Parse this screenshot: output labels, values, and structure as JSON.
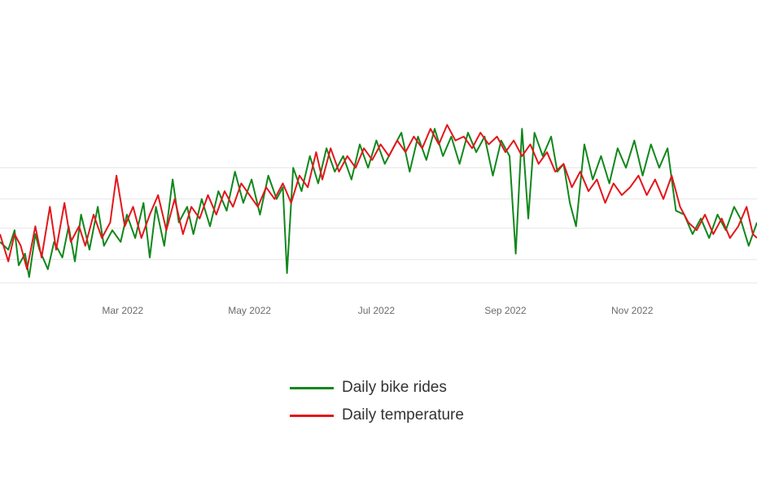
{
  "chart_data": {
    "type": "line",
    "x_axis": {
      "type": "date",
      "range": [
        "2022-01-01",
        "2022-12-31"
      ],
      "tick_labels": [
        "Mar 2022",
        "May 2022",
        "Jul 2022",
        "Sep 2022",
        "Nov 2022"
      ],
      "tick_dates": [
        "2022-03-01",
        "2022-05-01",
        "2022-07-01",
        "2022-09-01",
        "2022-11-01"
      ]
    },
    "y_axis": {
      "range": [
        0,
        100
      ],
      "gridline_values": [
        5,
        17,
        33,
        48,
        64
      ],
      "tick_labels_visible": false
    },
    "grid": true,
    "legend": {
      "position": "bottom-center"
    },
    "series": [
      {
        "name": "Daily bike rides",
        "color": "#11871c",
        "values": [
          [
            "2022-01-01",
            26
          ],
          [
            "2022-01-05",
            22
          ],
          [
            "2022-01-08",
            32
          ],
          [
            "2022-01-10",
            14
          ],
          [
            "2022-01-13",
            20
          ],
          [
            "2022-01-15",
            8
          ],
          [
            "2022-01-18",
            30
          ],
          [
            "2022-01-20",
            22
          ],
          [
            "2022-01-24",
            12
          ],
          [
            "2022-01-27",
            26
          ],
          [
            "2022-01-31",
            18
          ],
          [
            "2022-02-03",
            34
          ],
          [
            "2022-02-06",
            16
          ],
          [
            "2022-02-09",
            40
          ],
          [
            "2022-02-13",
            22
          ],
          [
            "2022-02-17",
            44
          ],
          [
            "2022-02-20",
            24
          ],
          [
            "2022-02-24",
            32
          ],
          [
            "2022-02-28",
            26
          ],
          [
            "2022-03-03",
            40
          ],
          [
            "2022-03-07",
            28
          ],
          [
            "2022-03-11",
            46
          ],
          [
            "2022-03-14",
            18
          ],
          [
            "2022-03-17",
            44
          ],
          [
            "2022-03-21",
            24
          ],
          [
            "2022-03-25",
            58
          ],
          [
            "2022-03-28",
            36
          ],
          [
            "2022-04-01",
            44
          ],
          [
            "2022-04-04",
            30
          ],
          [
            "2022-04-08",
            48
          ],
          [
            "2022-04-12",
            34
          ],
          [
            "2022-04-16",
            52
          ],
          [
            "2022-04-20",
            42
          ],
          [
            "2022-04-24",
            62
          ],
          [
            "2022-04-28",
            46
          ],
          [
            "2022-05-02",
            58
          ],
          [
            "2022-05-06",
            40
          ],
          [
            "2022-05-10",
            60
          ],
          [
            "2022-05-14",
            48
          ],
          [
            "2022-05-17",
            54
          ],
          [
            "2022-05-19",
            10
          ],
          [
            "2022-05-22",
            64
          ],
          [
            "2022-05-26",
            52
          ],
          [
            "2022-05-30",
            70
          ],
          [
            "2022-06-03",
            56
          ],
          [
            "2022-06-07",
            74
          ],
          [
            "2022-06-11",
            62
          ],
          [
            "2022-06-15",
            70
          ],
          [
            "2022-06-19",
            58
          ],
          [
            "2022-06-23",
            76
          ],
          [
            "2022-06-27",
            64
          ],
          [
            "2022-07-01",
            78
          ],
          [
            "2022-07-05",
            66
          ],
          [
            "2022-07-09",
            74
          ],
          [
            "2022-07-13",
            82
          ],
          [
            "2022-07-17",
            62
          ],
          [
            "2022-07-21",
            80
          ],
          [
            "2022-07-25",
            68
          ],
          [
            "2022-07-29",
            84
          ],
          [
            "2022-08-02",
            70
          ],
          [
            "2022-08-06",
            80
          ],
          [
            "2022-08-10",
            66
          ],
          [
            "2022-08-14",
            82
          ],
          [
            "2022-08-18",
            72
          ],
          [
            "2022-08-22",
            80
          ],
          [
            "2022-08-26",
            60
          ],
          [
            "2022-08-30",
            78
          ],
          [
            "2022-09-03",
            70
          ],
          [
            "2022-09-06",
            20
          ],
          [
            "2022-09-09",
            84
          ],
          [
            "2022-09-12",
            38
          ],
          [
            "2022-09-15",
            82
          ],
          [
            "2022-09-19",
            70
          ],
          [
            "2022-09-23",
            80
          ],
          [
            "2022-09-26",
            62
          ],
          [
            "2022-09-29",
            66
          ],
          [
            "2022-10-02",
            46
          ],
          [
            "2022-10-05",
            34
          ],
          [
            "2022-10-09",
            76
          ],
          [
            "2022-10-13",
            58
          ],
          [
            "2022-10-17",
            70
          ],
          [
            "2022-10-21",
            56
          ],
          [
            "2022-10-25",
            74
          ],
          [
            "2022-10-29",
            64
          ],
          [
            "2022-11-02",
            78
          ],
          [
            "2022-11-06",
            60
          ],
          [
            "2022-11-10",
            76
          ],
          [
            "2022-11-14",
            64
          ],
          [
            "2022-11-18",
            74
          ],
          [
            "2022-11-22",
            42
          ],
          [
            "2022-11-26",
            40
          ],
          [
            "2022-11-30",
            30
          ],
          [
            "2022-12-04",
            38
          ],
          [
            "2022-12-08",
            28
          ],
          [
            "2022-12-12",
            40
          ],
          [
            "2022-12-16",
            32
          ],
          [
            "2022-12-20",
            44
          ],
          [
            "2022-12-23",
            38
          ],
          [
            "2022-12-27",
            24
          ],
          [
            "2022-12-31",
            36
          ]
        ]
      },
      {
        "name": "Daily temperature",
        "color": "#e3161b",
        "values": [
          [
            "2022-01-01",
            30
          ],
          [
            "2022-01-05",
            16
          ],
          [
            "2022-01-08",
            30
          ],
          [
            "2022-01-11",
            24
          ],
          [
            "2022-01-14",
            12
          ],
          [
            "2022-01-18",
            34
          ],
          [
            "2022-01-21",
            18
          ],
          [
            "2022-01-25",
            44
          ],
          [
            "2022-01-28",
            22
          ],
          [
            "2022-02-01",
            46
          ],
          [
            "2022-02-04",
            26
          ],
          [
            "2022-02-08",
            34
          ],
          [
            "2022-02-11",
            24
          ],
          [
            "2022-02-15",
            40
          ],
          [
            "2022-02-19",
            28
          ],
          [
            "2022-02-23",
            36
          ],
          [
            "2022-02-26",
            60
          ],
          [
            "2022-03-02",
            34
          ],
          [
            "2022-03-06",
            44
          ],
          [
            "2022-03-10",
            28
          ],
          [
            "2022-03-14",
            40
          ],
          [
            "2022-03-18",
            50
          ],
          [
            "2022-03-22",
            32
          ],
          [
            "2022-03-26",
            48
          ],
          [
            "2022-03-30",
            30
          ],
          [
            "2022-04-03",
            44
          ],
          [
            "2022-04-07",
            38
          ],
          [
            "2022-04-11",
            50
          ],
          [
            "2022-04-15",
            40
          ],
          [
            "2022-04-19",
            52
          ],
          [
            "2022-04-23",
            44
          ],
          [
            "2022-04-27",
            56
          ],
          [
            "2022-05-01",
            50
          ],
          [
            "2022-05-05",
            44
          ],
          [
            "2022-05-09",
            54
          ],
          [
            "2022-05-13",
            48
          ],
          [
            "2022-05-17",
            56
          ],
          [
            "2022-05-21",
            46
          ],
          [
            "2022-05-25",
            60
          ],
          [
            "2022-05-29",
            54
          ],
          [
            "2022-06-02",
            72
          ],
          [
            "2022-06-05",
            58
          ],
          [
            "2022-06-09",
            74
          ],
          [
            "2022-06-13",
            62
          ],
          [
            "2022-06-17",
            70
          ],
          [
            "2022-06-21",
            64
          ],
          [
            "2022-06-25",
            74
          ],
          [
            "2022-06-29",
            68
          ],
          [
            "2022-07-03",
            76
          ],
          [
            "2022-07-07",
            70
          ],
          [
            "2022-07-11",
            78
          ],
          [
            "2022-07-15",
            72
          ],
          [
            "2022-07-19",
            80
          ],
          [
            "2022-07-23",
            74
          ],
          [
            "2022-07-27",
            84
          ],
          [
            "2022-07-31",
            76
          ],
          [
            "2022-08-04",
            86
          ],
          [
            "2022-08-08",
            78
          ],
          [
            "2022-08-12",
            80
          ],
          [
            "2022-08-16",
            74
          ],
          [
            "2022-08-20",
            82
          ],
          [
            "2022-08-24",
            76
          ],
          [
            "2022-08-28",
            80
          ],
          [
            "2022-09-01",
            72
          ],
          [
            "2022-09-05",
            78
          ],
          [
            "2022-09-09",
            70
          ],
          [
            "2022-09-13",
            76
          ],
          [
            "2022-09-17",
            66
          ],
          [
            "2022-09-21",
            72
          ],
          [
            "2022-09-25",
            62
          ],
          [
            "2022-09-29",
            66
          ],
          [
            "2022-10-03",
            54
          ],
          [
            "2022-10-07",
            62
          ],
          [
            "2022-10-11",
            52
          ],
          [
            "2022-10-15",
            58
          ],
          [
            "2022-10-19",
            46
          ],
          [
            "2022-10-23",
            56
          ],
          [
            "2022-10-27",
            50
          ],
          [
            "2022-10-31",
            54
          ],
          [
            "2022-11-04",
            60
          ],
          [
            "2022-11-08",
            50
          ],
          [
            "2022-11-12",
            58
          ],
          [
            "2022-11-16",
            48
          ],
          [
            "2022-11-20",
            60
          ],
          [
            "2022-11-24",
            44
          ],
          [
            "2022-11-28",
            36
          ],
          [
            "2022-12-02",
            32
          ],
          [
            "2022-12-06",
            40
          ],
          [
            "2022-12-10",
            30
          ],
          [
            "2022-12-14",
            38
          ],
          [
            "2022-12-18",
            28
          ],
          [
            "2022-12-22",
            34
          ],
          [
            "2022-12-26",
            44
          ],
          [
            "2022-12-29",
            30
          ],
          [
            "2022-12-31",
            28
          ]
        ]
      }
    ]
  }
}
